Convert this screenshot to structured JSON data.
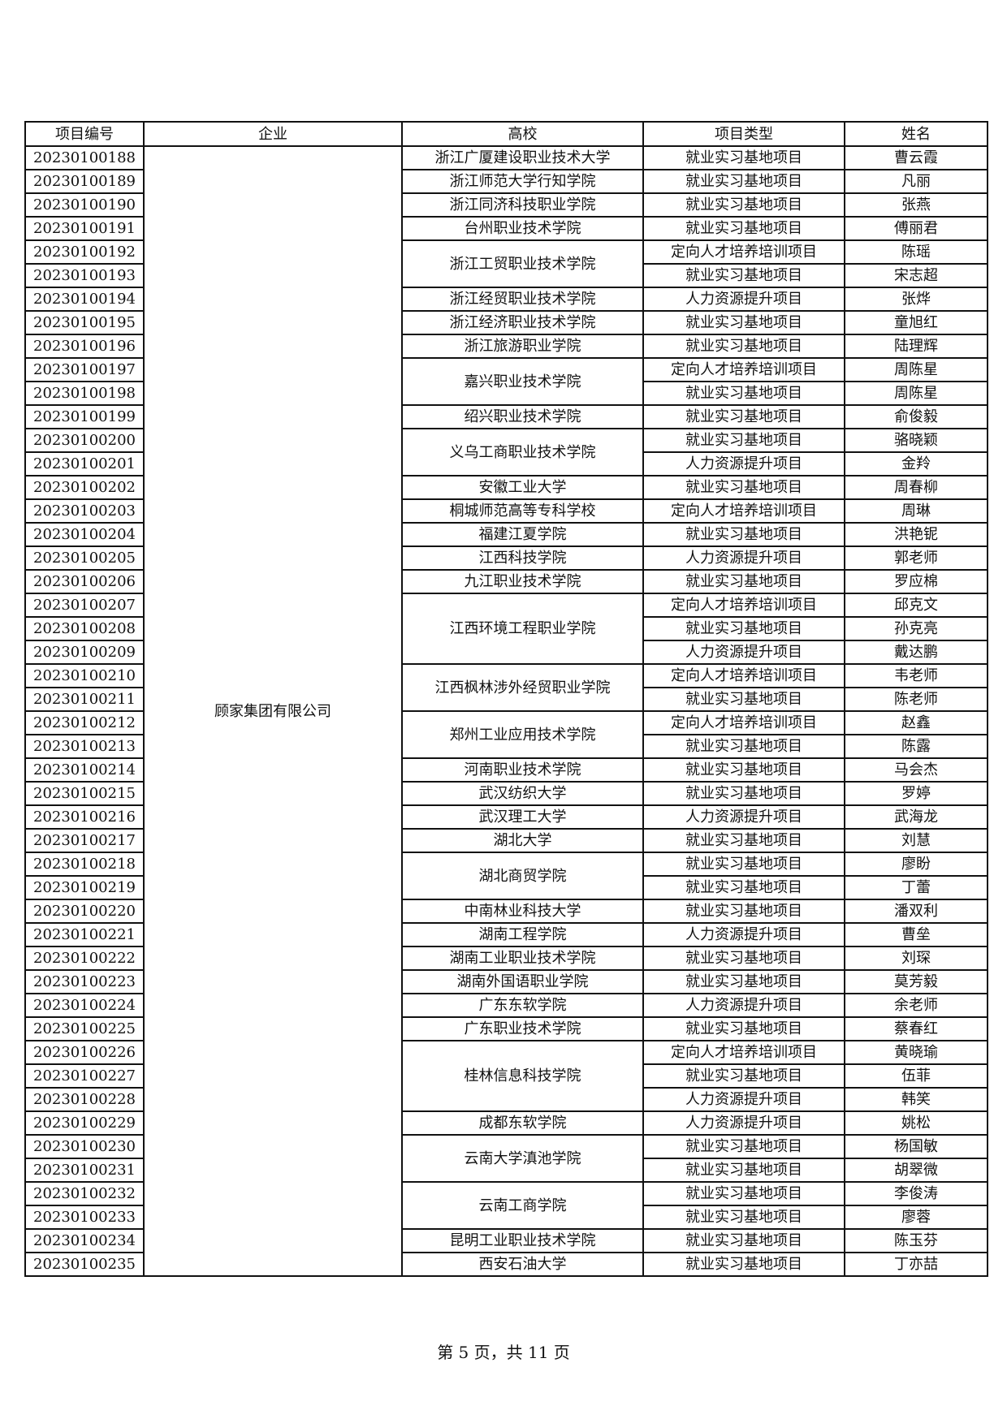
{
  "headers": [
    "项目编号",
    "企业",
    "高校",
    "项目类型",
    "姓名"
  ],
  "company": "顾家集团有限公司",
  "groups": [
    {
      "school": "浙江广厦建设职业技术大学",
      "entries": [
        {
          "id": "20230100188",
          "type": "就业实习基地项目",
          "name": "曹云霞"
        }
      ]
    },
    {
      "school": "浙江师范大学行知学院",
      "entries": [
        {
          "id": "20230100189",
          "type": "就业实习基地项目",
          "name": "凡丽"
        }
      ]
    },
    {
      "school": "浙江同济科技职业学院",
      "entries": [
        {
          "id": "20230100190",
          "type": "就业实习基地项目",
          "name": "张燕"
        }
      ]
    },
    {
      "school": "台州职业技术学院",
      "entries": [
        {
          "id": "20230100191",
          "type": "就业实习基地项目",
          "name": "傅丽君"
        }
      ]
    },
    {
      "school": "浙江工贸职业技术学院",
      "entries": [
        {
          "id": "20230100192",
          "type": "定向人才培养培训项目",
          "name": "陈瑶"
        },
        {
          "id": "20230100193",
          "type": "就业实习基地项目",
          "name": "宋志超"
        }
      ]
    },
    {
      "school": "浙江经贸职业技术学院",
      "entries": [
        {
          "id": "20230100194",
          "type": "人力资源提升项目",
          "name": "张烨"
        }
      ]
    },
    {
      "school": "浙江经济职业技术学院",
      "entries": [
        {
          "id": "20230100195",
          "type": "就业实习基地项目",
          "name": "童旭红"
        }
      ]
    },
    {
      "school": "浙江旅游职业学院",
      "entries": [
        {
          "id": "20230100196",
          "type": "就业实习基地项目",
          "name": "陆理辉"
        }
      ]
    },
    {
      "school": "嘉兴职业技术学院",
      "entries": [
        {
          "id": "20230100197",
          "type": "定向人才培养培训项目",
          "name": "周陈星"
        },
        {
          "id": "20230100198",
          "type": "就业实习基地项目",
          "name": "周陈星"
        }
      ]
    },
    {
      "school": "绍兴职业技术学院",
      "entries": [
        {
          "id": "20230100199",
          "type": "就业实习基地项目",
          "name": "俞俊毅"
        }
      ]
    },
    {
      "school": "义乌工商职业技术学院",
      "entries": [
        {
          "id": "20230100200",
          "type": "就业实习基地项目",
          "name": "骆晓颖"
        },
        {
          "id": "20230100201",
          "type": "人力资源提升项目",
          "name": "金羚"
        }
      ]
    },
    {
      "school": "安徽工业大学",
      "entries": [
        {
          "id": "20230100202",
          "type": "就业实习基地项目",
          "name": "周春柳"
        }
      ]
    },
    {
      "school": "桐城师范高等专科学校",
      "entries": [
        {
          "id": "20230100203",
          "type": "定向人才培养培训项目",
          "name": "周琳"
        }
      ]
    },
    {
      "school": "福建江夏学院",
      "entries": [
        {
          "id": "20230100204",
          "type": "就业实习基地项目",
          "name": "洪艳铌"
        }
      ]
    },
    {
      "school": "江西科技学院",
      "entries": [
        {
          "id": "20230100205",
          "type": "人力资源提升项目",
          "name": "郭老师"
        }
      ]
    },
    {
      "school": "九江职业技术学院",
      "entries": [
        {
          "id": "20230100206",
          "type": "就业实习基地项目",
          "name": "罗应棉"
        }
      ]
    },
    {
      "school": "江西环境工程职业学院",
      "entries": [
        {
          "id": "20230100207",
          "type": "定向人才培养培训项目",
          "name": "邱克文"
        },
        {
          "id": "20230100208",
          "type": "就业实习基地项目",
          "name": "孙克亮"
        },
        {
          "id": "20230100209",
          "type": "人力资源提升项目",
          "name": "戴达鹏"
        }
      ]
    },
    {
      "school": "江西枫林涉外经贸职业学院",
      "entries": [
        {
          "id": "20230100210",
          "type": "定向人才培养培训项目",
          "name": "韦老师"
        },
        {
          "id": "20230100211",
          "type": "就业实习基地项目",
          "name": "陈老师"
        }
      ]
    },
    {
      "school": "郑州工业应用技术学院",
      "entries": [
        {
          "id": "20230100212",
          "type": "定向人才培养培训项目",
          "name": "赵鑫"
        },
        {
          "id": "20230100213",
          "type": "就业实习基地项目",
          "name": "陈露"
        }
      ]
    },
    {
      "school": "河南职业技术学院",
      "entries": [
        {
          "id": "20230100214",
          "type": "就业实习基地项目",
          "name": "马会杰"
        }
      ]
    },
    {
      "school": "武汉纺织大学",
      "entries": [
        {
          "id": "20230100215",
          "type": "就业实习基地项目",
          "name": "罗婷"
        }
      ]
    },
    {
      "school": "武汉理工大学",
      "entries": [
        {
          "id": "20230100216",
          "type": "人力资源提升项目",
          "name": "武海龙"
        }
      ]
    },
    {
      "school": "湖北大学",
      "entries": [
        {
          "id": "20230100217",
          "type": "就业实习基地项目",
          "name": "刘慧"
        }
      ]
    },
    {
      "school": "湖北商贸学院",
      "entries": [
        {
          "id": "20230100218",
          "type": "就业实习基地项目",
          "name": "廖盼"
        },
        {
          "id": "20230100219",
          "type": "就业实习基地项目",
          "name": "丁蕾"
        }
      ]
    },
    {
      "school": "中南林业科技大学",
      "entries": [
        {
          "id": "20230100220",
          "type": "就业实习基地项目",
          "name": "潘双利"
        }
      ]
    },
    {
      "school": "湖南工程学院",
      "entries": [
        {
          "id": "20230100221",
          "type": "人力资源提升项目",
          "name": "曹垒"
        }
      ]
    },
    {
      "school": "湖南工业职业技术学院",
      "entries": [
        {
          "id": "20230100222",
          "type": "就业实习基地项目",
          "name": "刘琛"
        }
      ]
    },
    {
      "school": "湖南外国语职业学院",
      "entries": [
        {
          "id": "20230100223",
          "type": "就业实习基地项目",
          "name": "莫芳毅"
        }
      ]
    },
    {
      "school": "广东东软学院",
      "entries": [
        {
          "id": "20230100224",
          "type": "人力资源提升项目",
          "name": "余老师"
        }
      ]
    },
    {
      "school": "广东职业技术学院",
      "entries": [
        {
          "id": "20230100225",
          "type": "就业实习基地项目",
          "name": "蔡春红"
        }
      ]
    },
    {
      "school": "桂林信息科技学院",
      "entries": [
        {
          "id": "20230100226",
          "type": "定向人才培养培训项目",
          "name": "黄晓瑜"
        },
        {
          "id": "20230100227",
          "type": "就业实习基地项目",
          "name": "伍菲"
        },
        {
          "id": "20230100228",
          "type": "人力资源提升项目",
          "name": "韩笑"
        }
      ]
    },
    {
      "school": "成都东软学院",
      "entries": [
        {
          "id": "20230100229",
          "type": "人力资源提升项目",
          "name": "姚松"
        }
      ]
    },
    {
      "school": "云南大学滇池学院",
      "entries": [
        {
          "id": "20230100230",
          "type": "就业实习基地项目",
          "name": "杨国敏"
        },
        {
          "id": "20230100231",
          "type": "就业实习基地项目",
          "name": "胡翠微"
        }
      ]
    },
    {
      "school": "云南工商学院",
      "entries": [
        {
          "id": "20230100232",
          "type": "就业实习基地项目",
          "name": "李俊涛"
        },
        {
          "id": "20230100233",
          "type": "就业实习基地项目",
          "name": "廖蓉"
        }
      ]
    },
    {
      "school": "昆明工业职业技术学院",
      "entries": [
        {
          "id": "20230100234",
          "type": "就业实习基地项目",
          "name": "陈玉芬"
        }
      ]
    },
    {
      "school": "西安石油大学",
      "entries": [
        {
          "id": "20230100235",
          "type": "就业实习基地项目",
          "name": "丁亦喆"
        }
      ]
    }
  ],
  "footer": "第 5 页，共 11 页"
}
